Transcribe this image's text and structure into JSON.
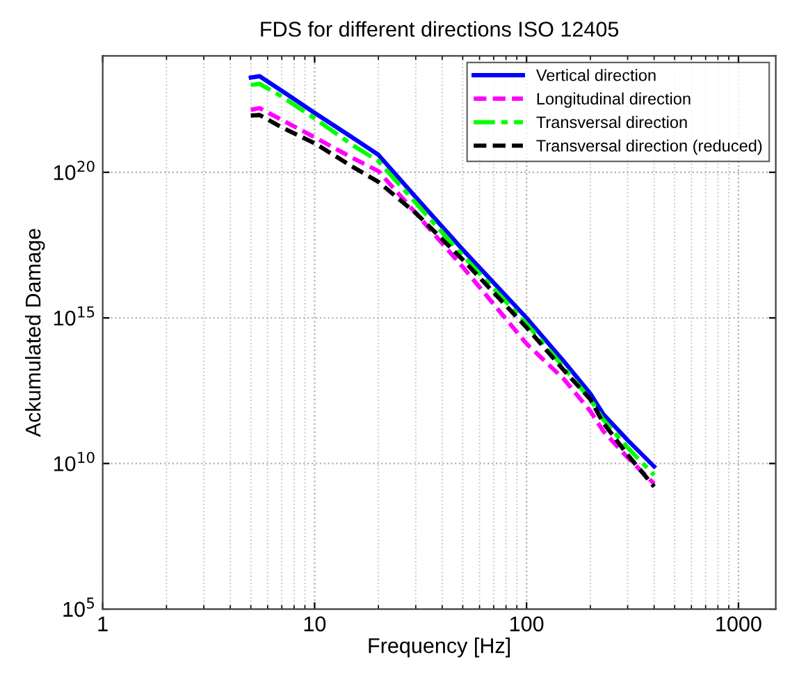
{
  "chart_data": {
    "type": "line",
    "title": "FDS for different directions ISO 12405",
    "xlabel": "Frequency [Hz]",
    "ylabel": "Ackumulated Damage",
    "x": [
      5,
      5.5,
      7,
      10,
      15,
      20,
      30,
      50,
      100,
      150,
      200,
      230,
      300,
      400
    ],
    "series": [
      {
        "name": "Vertical direction",
        "color": "#0000ff",
        "line_style": "solid",
        "values": [
          1.8e+23,
          2e+23,
          6.3e+22,
          1.1e+22,
          1.6e+21,
          4e+20,
          1.4e+19,
          2.2e+17,
          1000000000000000.0,
          32000000000000.0,
          2500000000000.0,
          500000000000.0,
          63000000000.0,
          7900000000.0
        ]
      },
      {
        "name": "Longitudinal direction",
        "color": "#ff00ff",
        "line_style": "dashed",
        "values": [
          1.4e+22,
          1.6e+22,
          6.3e+21,
          1.6e+21,
          3.2e+20,
          1.1e+20,
          4e+18,
          5.6e+16,
          130000000000000.0,
          7900000000000.0,
          630000000000.0,
          130000000000.0,
          16000000000.0,
          2000000000.0
        ]
      },
      {
        "name": "Transversal direction",
        "color": "#00ff00",
        "line_style": "dashdot",
        "values": [
          1e+23,
          1.1e+23,
          4e+22,
          7.1e+21,
          8.9e+20,
          2.4e+20,
          8.9e+18,
          1.4e+17,
          630000000000000.0,
          20000000000000.0,
          1600000000000.0,
          320000000000.0,
          35000000000.0,
          4000000000.0
        ]
      },
      {
        "name": "Transversal direction (reduced)",
        "color": "#000000",
        "line_style": "dashed",
        "values": [
          8.9e+21,
          9.3e+21,
          3.5e+21,
          1e+21,
          1.6e+20,
          4.7e+19,
          4e+18,
          1e+17,
          470000000000000.0,
          16000000000000.0,
          1600000000000.0,
          250000000000.0,
          20000000000.0,
          1600000000.0
        ]
      }
    ],
    "log": "xy",
    "xlim": [
      1,
      1500
    ],
    "ylim": [
      100000.0,
      1e+24
    ],
    "xticks": [
      1,
      10,
      100,
      1000
    ],
    "yticks": [
      {
        "value": 100000.0,
        "label": "10$^{5}$"
      },
      {
        "value": 10000000000.0,
        "label": "10$^{10}$"
      },
      {
        "value": 1000000000000000.0,
        "label": "10$^{15}$"
      },
      {
        "value": 1e+20,
        "label": "10$^{20}$"
      }
    ],
    "grid": true,
    "legend": "top right"
  }
}
